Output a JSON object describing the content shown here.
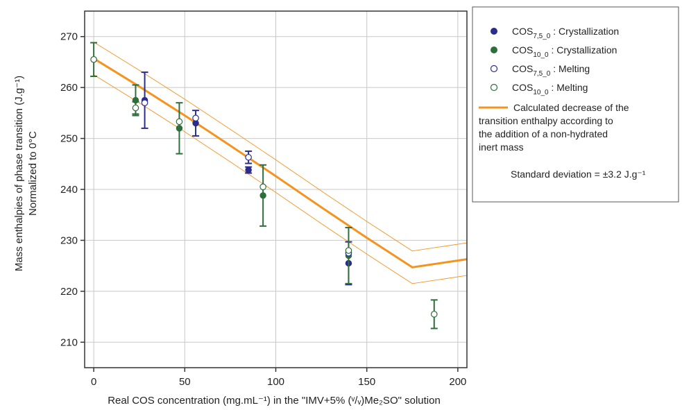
{
  "chart_data": {
    "type": "scatter",
    "title": "",
    "xlabel": "Real COS concentration (mg.mL⁻¹) in the \"IMV+5% (ᵛ/ᵥ)Me₂SO\" solution",
    "ylabel_line1": "Mass enthalpies of phase transition (J.g⁻¹)",
    "ylabel_line2": "Normalized to 0°C",
    "xlim": [
      -5,
      205
    ],
    "ylim": [
      205,
      275
    ],
    "xticks": [
      0,
      50,
      100,
      150,
      200
    ],
    "yticks": [
      210,
      220,
      230,
      240,
      250,
      260,
      270
    ],
    "grid": true,
    "legend_position": "top-right outside",
    "colors": {
      "blue": "#2b2d8c",
      "green": "#2e6e3c",
      "orange": "#f5931e"
    },
    "series": [
      {
        "name_base": "COS",
        "name_sub": "7,5_0",
        "name_suffix": ": Crystallization",
        "marker": "filled-circle",
        "color": "#2b2d8c",
        "points": [
          {
            "x": 28,
            "y": 257.5,
            "err": 5.5
          },
          {
            "x": 56,
            "y": 253,
            "err": 2.5
          },
          {
            "x": 85,
            "y": 243.8,
            "err": 0.6
          },
          {
            "x": 140,
            "y": 225.5,
            "err": 4.2
          }
        ]
      },
      {
        "name_base": "COS",
        "name_sub": "10_0",
        "name_suffix": ": Crystallization",
        "marker": "filled-circle",
        "color": "#2e6e3c",
        "points": [
          {
            "x": 0,
            "y": 265.5,
            "err": 3.3
          },
          {
            "x": 23,
            "y": 257.5,
            "err": 3.0
          },
          {
            "x": 47,
            "y": 252,
            "err": 5.0
          },
          {
            "x": 93,
            "y": 238.8,
            "err": 6.0
          },
          {
            "x": 140,
            "y": 227,
            "err": 5.5
          },
          {
            "x": 187,
            "y": 215.5,
            "err": 2.8
          }
        ]
      },
      {
        "name_base": "COS",
        "name_sub": "7,5_0",
        "name_suffix": ": Melting",
        "marker": "open-circle",
        "color": "#2b2d8c",
        "points": [
          {
            "x": 28,
            "y": 257,
            "err": 0
          },
          {
            "x": 56,
            "y": 254,
            "err": 0
          },
          {
            "x": 85,
            "y": 246.3,
            "err": 1.2
          },
          {
            "x": 140,
            "y": 227.5,
            "err": 0
          }
        ]
      },
      {
        "name_base": "COS",
        "name_sub": "10_0",
        "name_suffix": " : Melting",
        "marker": "open-circle",
        "color": "#2e6e3c",
        "points": [
          {
            "x": 0,
            "y": 265.5,
            "err": 0
          },
          {
            "x": 23,
            "y": 256,
            "err": 1.2
          },
          {
            "x": 47,
            "y": 253.3,
            "err": 0
          },
          {
            "x": 93,
            "y": 240.5,
            "err": 0
          },
          {
            "x": 140,
            "y": 228,
            "err": 0
          },
          {
            "x": 187,
            "y": 215.5,
            "err": 0
          }
        ]
      }
    ],
    "model_curve": {
      "label_lines": [
        "Calculated decrease of the",
        "transition enthalpy according to",
        "the addition of a non-hydrated",
        "inert mass"
      ],
      "std_label": "Standard deviation = ±3.2 J.g⁻¹",
      "x": [
        0,
        25,
        50,
        75,
        100,
        125,
        150,
        175,
        205
      ],
      "y": [
        265.7,
        260.2,
        254.5,
        248.6,
        242.6,
        236.5,
        230.5,
        224.7,
        226.3
      ],
      "std": 3.2
    }
  }
}
